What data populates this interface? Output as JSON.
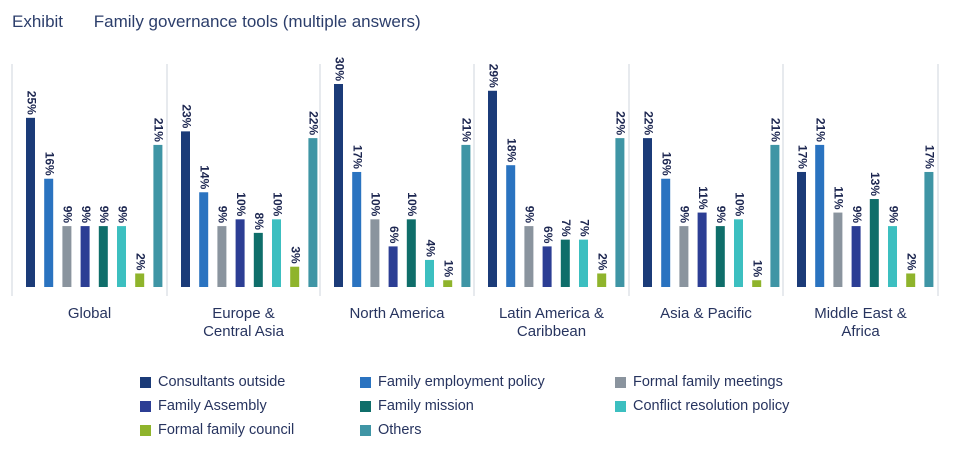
{
  "header": {
    "exhibit_label": "Exhibit",
    "title": "Family governance tools (multiple answers)"
  },
  "chart_data": {
    "type": "bar",
    "title": "Family governance tools (multiple answers)",
    "xlabel": "",
    "ylabel": "",
    "ylim": [
      0,
      30
    ],
    "grid": false,
    "legend_position": "bottom",
    "categories": [
      "Global",
      "Europe & Central Asia",
      "North America",
      "Latin America & Caribbean",
      "Asia & Pacific",
      "Middle East & Africa"
    ],
    "category_lines": [
      [
        "Global"
      ],
      [
        "Europe &",
        "Central Asia"
      ],
      [
        "North America"
      ],
      [
        "Latin America &",
        "Caribbean"
      ],
      [
        "Asia & Pacific"
      ],
      [
        "Middle East &",
        "Africa"
      ]
    ],
    "series": [
      {
        "name": "Consultants outside",
        "color": "#1b3b78",
        "values": [
          25,
          23,
          30,
          29,
          22,
          17
        ]
      },
      {
        "name": "Family employment policy",
        "color": "#2a73c0",
        "values": [
          16,
          14,
          17,
          18,
          16,
          21
        ]
      },
      {
        "name": "Formal family meetings",
        "color": "#8a949e",
        "values": [
          9,
          9,
          10,
          9,
          9,
          11
        ]
      },
      {
        "name": "Family Assembly",
        "color": "#2c3e94",
        "values": [
          9,
          10,
          6,
          6,
          11,
          9
        ]
      },
      {
        "name": "Family mission",
        "color": "#0f6e6a",
        "values": [
          9,
          8,
          10,
          7,
          9,
          13
        ]
      },
      {
        "name": "Conflict resolution policy",
        "color": "#3cbfc0",
        "values": [
          9,
          10,
          4,
          7,
          10,
          9
        ]
      },
      {
        "name": "Formal family council",
        "color": "#8fb42c",
        "values": [
          2,
          3,
          1,
          2,
          1,
          2
        ]
      },
      {
        "name": "Others",
        "color": "#3f95a5",
        "values": [
          21,
          22,
          21,
          22,
          21,
          17
        ]
      }
    ],
    "value_suffix": "%"
  }
}
